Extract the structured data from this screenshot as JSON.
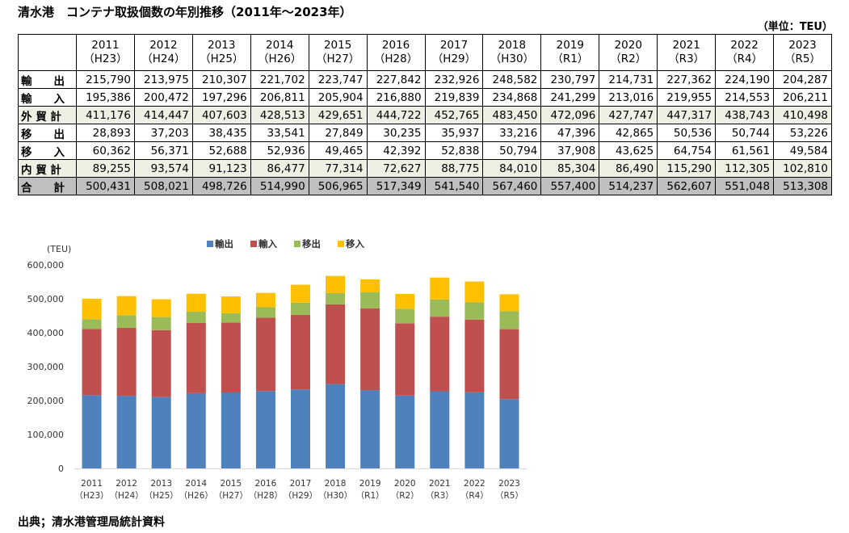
{
  "title": "清水港　コンテナ取扱個数の年別推移",
  "title_range": "（2011年～2023年）",
  "unit": "（単位：TEU）",
  "source": "出典；清水港管理局統計資料",
  "table": {
    "years": [
      {
        "year": "2011",
        "era": "（H23）"
      },
      {
        "year": "2012",
        "era": "（H24）"
      },
      {
        "year": "2013",
        "era": "（H25）"
      },
      {
        "year": "2014",
        "era": "（H26）"
      },
      {
        "year": "2015",
        "era": "（H27）"
      },
      {
        "year": "2016",
        "era": "（H28）"
      },
      {
        "year": "2017",
        "era": "（H29）"
      },
      {
        "year": "2018",
        "era": "（H30）"
      },
      {
        "year": "2019",
        "era": "（R1）"
      },
      {
        "year": "2020",
        "era": "（R2）"
      },
      {
        "year": "2021",
        "era": "（R3）"
      },
      {
        "year": "2022",
        "era": "（R4）"
      },
      {
        "year": "2023",
        "era": "（R5）"
      }
    ],
    "rows": [
      {
        "label": "輸　　出",
        "style": "plain",
        "values": [
          "215,790",
          "213,975",
          "210,307",
          "221,702",
          "223,747",
          "227,842",
          "232,926",
          "248,582",
          "230,797",
          "214,731",
          "227,362",
          "224,190",
          "204,287"
        ]
      },
      {
        "label": "輸　　入",
        "style": "plain",
        "values": [
          "195,386",
          "200,472",
          "197,296",
          "206,811",
          "205,904",
          "216,880",
          "219,839",
          "234,868",
          "241,299",
          "213,016",
          "219,955",
          "214,553",
          "206,211"
        ]
      },
      {
        "label": "外 貿 計",
        "style": "shade",
        "values": [
          "411,176",
          "414,447",
          "407,603",
          "428,513",
          "429,651",
          "444,722",
          "452,765",
          "483,450",
          "472,096",
          "427,747",
          "447,317",
          "438,743",
          "410,498"
        ]
      },
      {
        "label": "移　　出",
        "style": "plain",
        "values": [
          "28,893",
          "37,203",
          "38,435",
          "33,541",
          "27,849",
          "30,235",
          "35,937",
          "33,216",
          "47,396",
          "42,865",
          "50,536",
          "50,744",
          "53,226"
        ]
      },
      {
        "label": "移　　入",
        "style": "plain",
        "values": [
          "60,362",
          "56,371",
          "52,688",
          "52,936",
          "49,465",
          "42,392",
          "52,838",
          "50,794",
          "37,908",
          "43,625",
          "64,754",
          "61,561",
          "49,584"
        ]
      },
      {
        "label": "内 貿 計",
        "style": "shade",
        "values": [
          "89,255",
          "93,574",
          "91,123",
          "86,477",
          "77,314",
          "72,627",
          "88,775",
          "84,010",
          "85,304",
          "86,490",
          "115,290",
          "112,305",
          "102,810"
        ]
      },
      {
        "label": "合　　計",
        "style": "total",
        "values": [
          "500,431",
          "508,021",
          "498,726",
          "514,990",
          "506,965",
          "517,349",
          "541,540",
          "567,460",
          "557,400",
          "514,237",
          "562,607",
          "551,048",
          "513,308"
        ]
      }
    ]
  },
  "chart_data": {
    "type": "bar",
    "stacked": true,
    "ylabel": "(TEU)",
    "ylim": [
      0,
      600000
    ],
    "yticks": [
      "0",
      "100,000",
      "200,000",
      "300,000",
      "400,000",
      "500,000",
      "600,000"
    ],
    "grid": false,
    "legend_position": "top",
    "categories": [
      {
        "year": "2011",
        "era": "（H23）"
      },
      {
        "year": "2012",
        "era": "（H24）"
      },
      {
        "year": "2013",
        "era": "（H25）"
      },
      {
        "year": "2014",
        "era": "（H26）"
      },
      {
        "year": "2015",
        "era": "（H27）"
      },
      {
        "year": "2016",
        "era": "（H28）"
      },
      {
        "year": "2017",
        "era": "（H29）"
      },
      {
        "year": "2018",
        "era": "（H30）"
      },
      {
        "year": "2019",
        "era": "（R1）"
      },
      {
        "year": "2020",
        "era": "（R2）"
      },
      {
        "year": "2021",
        "era": "（R3）"
      },
      {
        "year": "2022",
        "era": "（R4）"
      },
      {
        "year": "2023",
        "era": "（R5）"
      }
    ],
    "series": [
      {
        "name": "輸出",
        "color": "#4f81bd",
        "values": [
          215790,
          213975,
          210307,
          221702,
          223747,
          227842,
          232926,
          248582,
          230797,
          214731,
          227362,
          224190,
          204287
        ]
      },
      {
        "name": "輸入",
        "color": "#c0504d",
        "values": [
          195386,
          200472,
          197296,
          206811,
          205904,
          216880,
          219839,
          234868,
          241299,
          213016,
          219955,
          214553,
          206211
        ]
      },
      {
        "name": "移出",
        "color": "#9bbb59",
        "values": [
          28893,
          37203,
          38435,
          33541,
          27849,
          30235,
          35937,
          33216,
          47396,
          42865,
          50536,
          50744,
          53226
        ]
      },
      {
        "name": "移入",
        "color": "#ffc000",
        "values": [
          60362,
          56371,
          52688,
          52936,
          49465,
          42392,
          52838,
          50794,
          37908,
          43625,
          64754,
          61561,
          49584
        ]
      }
    ]
  }
}
